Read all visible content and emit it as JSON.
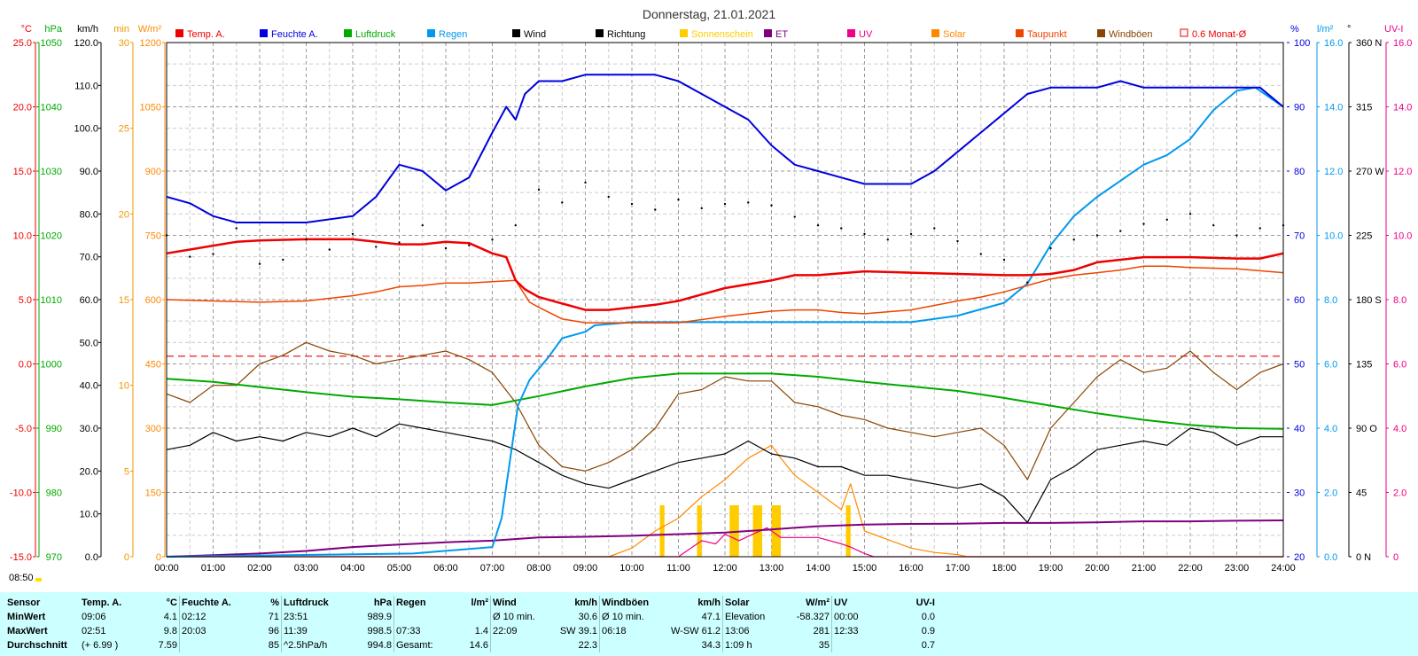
{
  "title": "Donnerstag, 21.01.2021",
  "time_label": "08:50",
  "colors": {
    "temp": "#ee0000",
    "humidity": "#0000dd",
    "pressure": "#00aa00",
    "rain": "#0099ee",
    "wind": "#000000",
    "direction": "#000000",
    "sunshine": "#ffcc00",
    "et": "#800080",
    "uv": "#ee0088",
    "solar": "#ff8800",
    "dewpoint": "#ee4400",
    "gusts": "#884400",
    "ref": "#ee0000",
    "grid": "#888888"
  },
  "legend": [
    {
      "label": "Temp. A.",
      "color": "#ee0000",
      "kind": "box"
    },
    {
      "label": "Feuchte A.",
      "color": "#0000dd",
      "kind": "box"
    },
    {
      "label": "Luftdruck",
      "color": "#00aa00",
      "kind": "box"
    },
    {
      "label": "Regen",
      "color": "#0099ee",
      "kind": "box"
    },
    {
      "label": "Wind",
      "color": "#000000",
      "kind": "box"
    },
    {
      "label": "Richtung",
      "color": "#000000",
      "kind": "box"
    },
    {
      "label": "Sonnenschein",
      "color": "#ffcc00",
      "kind": "box"
    },
    {
      "label": "ET",
      "color": "#800080",
      "kind": "box"
    },
    {
      "label": "UV",
      "color": "#ee0088",
      "kind": "box"
    },
    {
      "label": "Solar",
      "color": "#ff8800",
      "kind": "box"
    },
    {
      "label": "Taupunkt",
      "color": "#ee4400",
      "kind": "box"
    },
    {
      "label": "Windböen",
      "color": "#884400",
      "kind": "box"
    },
    {
      "label": "0.6 Monat-Ø",
      "color": "#ee0000",
      "kind": "outline"
    }
  ],
  "left_axes": [
    {
      "unit": "°C",
      "color": "#ee0000",
      "ticks": [
        "25.0",
        "20.0",
        "15.0",
        "10.0",
        "5.0",
        "0.0",
        "-5.0",
        "-10.0",
        "-15.0"
      ]
    },
    {
      "unit": "hPa",
      "color": "#00aa00",
      "ticks": [
        "1050",
        "1040",
        "1030",
        "1020",
        "1010",
        "1000",
        "990",
        "980",
        "970"
      ]
    },
    {
      "unit": "km/h",
      "color": "#000000",
      "ticks": [
        "120.0",
        "110.0",
        "100.0",
        "90.0",
        "80.0",
        "70.0",
        "60.0",
        "50.0",
        "40.0",
        "30.0",
        "20.0",
        "10.0",
        "0.0"
      ]
    },
    {
      "unit": "min",
      "color": "#ee9900",
      "ticks": [
        "30",
        "25",
        "20",
        "15",
        "10",
        "5",
        "0"
      ]
    },
    {
      "unit": "W/m²",
      "color": "#ff8800",
      "ticks": [
        "1200",
        "1050",
        "900",
        "750",
        "600",
        "450",
        "300",
        "150",
        "0"
      ]
    }
  ],
  "right_axes": [
    {
      "unit": "%",
      "color": "#0000dd",
      "ticks": [
        "100",
        "90",
        "80",
        "70",
        "60",
        "50",
        "40",
        "30",
        "20"
      ]
    },
    {
      "unit": "l/m²",
      "color": "#0099ee",
      "ticks": [
        "16.0",
        "14.0",
        "12.0",
        "10.0",
        "8.0",
        "6.0",
        "4.0",
        "2.0",
        "0.0"
      ]
    },
    {
      "unit": "°",
      "color": "#000000",
      "ticks": [
        "360 N",
        "315",
        "270 W",
        "225",
        "180 S",
        "135",
        "90 O",
        "45",
        "0 N"
      ]
    },
    {
      "unit": "UV-I",
      "color": "#ee0088",
      "ticks": [
        "16.0",
        "14.0",
        "12.0",
        "10.0",
        "8.0",
        "6.0",
        "4.0",
        "2.0",
        "0"
      ]
    }
  ],
  "x_ticks": [
    "00:00",
    "01:00",
    "02:00",
    "03:00",
    "04:00",
    "05:00",
    "06:00",
    "07:00",
    "08:00",
    "09:00",
    "10:00",
    "11:00",
    "12:00",
    "13:00",
    "14:00",
    "15:00",
    "16:00",
    "17:00",
    "18:00",
    "19:00",
    "20:00",
    "21:00",
    "22:00",
    "23:00",
    "24:00"
  ],
  "chart_data": {
    "type": "line",
    "title": "Donnerstag, 21.01.2021",
    "x_unit": "hour of day",
    "xlim": [
      0,
      24
    ],
    "reference_line": {
      "label": "0.6 Monat-Ø",
      "value": 0.6,
      "unit": "°C"
    },
    "series": [
      {
        "name": "Temp. A.",
        "unit": "°C",
        "ylim": [
          -15,
          25
        ],
        "x": [
          0,
          0.5,
          1,
          1.5,
          2,
          3,
          4,
          4.5,
          5,
          5.5,
          6,
          6.5,
          7,
          7.3,
          7.5,
          7.7,
          8,
          8.5,
          9,
          9.5,
          10,
          10.5,
          11,
          11.5,
          12,
          12.5,
          13,
          13.5,
          14,
          15,
          16,
          17,
          18,
          18.5,
          19,
          19.5,
          20,
          21,
          22,
          23,
          23.5,
          24
        ],
        "y": [
          8.6,
          8.9,
          9.2,
          9.5,
          9.6,
          9.7,
          9.7,
          9.5,
          9.3,
          9.3,
          9.5,
          9.4,
          8.6,
          8.3,
          6.5,
          5.8,
          5.2,
          4.7,
          4.2,
          4.2,
          4.4,
          4.6,
          4.9,
          5.4,
          5.9,
          6.2,
          6.5,
          6.9,
          6.9,
          7.2,
          7.1,
          7.0,
          6.9,
          6.9,
          7.0,
          7.3,
          7.9,
          8.3,
          8.3,
          8.2,
          8.2,
          8.6
        ]
      },
      {
        "name": "Feuchte A.",
        "unit": "%",
        "ylim": [
          20,
          100
        ],
        "x": [
          0,
          0.5,
          1,
          1.5,
          2,
          3,
          4,
          4.5,
          5,
          5.5,
          6,
          6.5,
          7,
          7.3,
          7.5,
          7.7,
          8,
          8.5,
          9,
          10,
          10.5,
          11,
          11.5,
          12,
          12.5,
          13,
          13.5,
          14,
          14.5,
          15,
          15.5,
          16,
          16.5,
          17,
          17.5,
          18,
          18.5,
          19,
          20,
          20.5,
          21,
          21.5,
          22,
          23,
          23.5,
          24
        ],
        "y": [
          76,
          75,
          73,
          72,
          72,
          72,
          73,
          76,
          81,
          80,
          77,
          79,
          86,
          90,
          88,
          92,
          94,
          94,
          95,
          95,
          95,
          94,
          92,
          90,
          88,
          84,
          81,
          80,
          79,
          78,
          78,
          78,
          80,
          83,
          86,
          89,
          92,
          93,
          93,
          94,
          93,
          93,
          93,
          93,
          93,
          90
        ]
      },
      {
        "name": "Luftdruck",
        "unit": "hPa",
        "ylim": [
          970,
          1050
        ],
        "x": [
          0,
          1,
          2,
          3,
          4,
          5,
          6,
          7,
          8,
          9,
          10,
          11,
          12,
          13,
          14,
          15,
          16,
          17,
          18,
          19,
          20,
          21,
          22,
          23,
          24
        ],
        "y": [
          997.7,
          997.2,
          996.4,
          995.6,
          994.9,
          994.5,
          994.0,
          993.6,
          995.0,
          996.5,
          997.8,
          998.5,
          998.5,
          998.5,
          998.0,
          997.2,
          996.5,
          995.8,
          994.7,
          993.5,
          992.3,
          991.3,
          990.5,
          990.0,
          989.9
        ]
      },
      {
        "name": "Regen",
        "unit": "l/m²",
        "ylim": [
          0,
          16
        ],
        "x": [
          0,
          5.3,
          7.0,
          7.2,
          7.55,
          7.8,
          8.2,
          8.5,
          9.0,
          9.2,
          10.0,
          16.0,
          17.0,
          18.0,
          18.5,
          19.0,
          19.5,
          20.0,
          20.5,
          21.0,
          21.5,
          22.0,
          22.5,
          23.0,
          23.4,
          24.0
        ],
        "y": [
          0,
          0.1,
          0.3,
          1.2,
          4.7,
          5.5,
          6.2,
          6.8,
          7.0,
          7.2,
          7.3,
          7.3,
          7.5,
          7.9,
          8.5,
          9.7,
          10.6,
          11.2,
          11.7,
          12.2,
          12.5,
          13.0,
          13.9,
          14.5,
          14.6,
          14.0
        ]
      },
      {
        "name": "Wind",
        "unit": "km/h",
        "ylim": [
          0,
          120
        ],
        "x": [
          0,
          0.5,
          1,
          1.5,
          2,
          2.5,
          3,
          3.5,
          4,
          4.5,
          5,
          5.5,
          6,
          6.5,
          7,
          7.5,
          8,
          8.5,
          9,
          9.5,
          10,
          10.5,
          11,
          11.5,
          12,
          12.5,
          13,
          13.5,
          14,
          14.5,
          15,
          15.5,
          16,
          16.5,
          17,
          17.5,
          18,
          18.5,
          19,
          19.5,
          20,
          20.5,
          21,
          21.5,
          22,
          22.5,
          23,
          23.5,
          24
        ],
        "y": [
          25,
          26,
          29,
          27,
          28,
          27,
          29,
          28,
          30,
          28,
          31,
          30,
          29,
          28,
          27,
          25,
          22,
          19,
          17,
          16,
          18,
          20,
          22,
          23,
          24,
          27,
          24,
          23,
          21,
          21,
          19,
          19,
          18,
          17,
          16,
          17,
          14,
          8,
          18,
          21,
          25,
          26,
          27,
          26,
          30,
          29,
          26,
          28,
          28
        ]
      },
      {
        "name": "Windböen",
        "unit": "km/h",
        "ylim": [
          0,
          120
        ],
        "x": [
          0,
          0.5,
          1,
          1.5,
          2,
          2.5,
          3,
          3.5,
          4,
          4.5,
          5,
          5.5,
          6,
          6.5,
          7,
          7.5,
          8,
          8.5,
          9,
          9.5,
          10,
          10.5,
          11,
          11.5,
          12,
          12.5,
          13,
          13.5,
          14,
          14.5,
          15,
          15.5,
          16,
          16.5,
          17,
          17.5,
          18,
          18.5,
          19,
          19.5,
          20,
          20.5,
          21,
          21.5,
          22,
          22.5,
          23,
          23.5,
          24
        ],
        "y": [
          38,
          36,
          40,
          40,
          45,
          47,
          50,
          48,
          47,
          45,
          46,
          47,
          48,
          46,
          43,
          36,
          26,
          21,
          20,
          22,
          25,
          30,
          38,
          39,
          42,
          41,
          41,
          36,
          35,
          33,
          32,
          30,
          29,
          28,
          29,
          30,
          26,
          18,
          30,
          36,
          42,
          46,
          43,
          44,
          48,
          43,
          39,
          43,
          45
        ]
      },
      {
        "name": "Solar",
        "unit": "W/m²",
        "ylim": [
          0,
          1200
        ],
        "x": [
          0,
          9.5,
          10.0,
          10.5,
          11.0,
          11.5,
          12.0,
          12.5,
          13.0,
          13.2,
          13.5,
          14.0,
          14.5,
          14.7,
          15.0,
          15.5,
          16.0,
          16.5,
          17.0,
          17.2,
          24
        ],
        "y": [
          0,
          0,
          20,
          60,
          90,
          140,
          180,
          230,
          260,
          230,
          190,
          150,
          110,
          170,
          60,
          40,
          20,
          10,
          5,
          0,
          0
        ]
      },
      {
        "name": "UV",
        "unit": "UV-I",
        "ylim": [
          0,
          16
        ],
        "x": [
          0,
          11.0,
          11.2,
          11.5,
          11.8,
          12.0,
          12.3,
          12.6,
          12.9,
          13.2,
          13.5,
          14.0,
          14.5,
          14.7,
          15.0,
          15.2,
          24
        ],
        "y": [
          0,
          0,
          0.2,
          0.5,
          0.4,
          0.7,
          0.5,
          0.7,
          0.9,
          0.6,
          0.6,
          0.6,
          0.4,
          0.3,
          0.1,
          0,
          0
        ]
      },
      {
        "name": "ET",
        "unit": "l/m²",
        "ylim": [
          0,
          16
        ],
        "x": [
          0,
          1,
          2,
          3,
          4,
          5,
          6,
          7,
          8,
          9,
          10,
          11,
          12,
          13,
          14,
          15,
          16,
          17,
          18,
          19,
          20,
          21,
          22,
          23,
          24
        ],
        "y": [
          0,
          0.05,
          0.1,
          0.18,
          0.3,
          0.38,
          0.45,
          0.5,
          0.6,
          0.62,
          0.65,
          0.7,
          0.75,
          0.85,
          0.95,
          1.0,
          1.02,
          1.03,
          1.05,
          1.05,
          1.07,
          1.1,
          1.1,
          1.12,
          1.13
        ]
      },
      {
        "name": "Taupunkt",
        "unit": "°C",
        "ylim": [
          -15,
          25
        ],
        "x": [
          0,
          1,
          2,
          3,
          4,
          4.5,
          5,
          5.5,
          6,
          6.5,
          7,
          7.5,
          7.8,
          8,
          8.5,
          9,
          9.5,
          10,
          11,
          12,
          13,
          13.5,
          14,
          14.5,
          15,
          16,
          17,
          17.5,
          18,
          18.5,
          19,
          19.5,
          20,
          20.5,
          21,
          21.5,
          22,
          23,
          24
        ],
        "y": [
          5.0,
          4.9,
          4.8,
          4.9,
          5.3,
          5.6,
          6.0,
          6.1,
          6.3,
          6.3,
          6.4,
          6.5,
          4.8,
          4.4,
          3.5,
          3.2,
          3.2,
          3.2,
          3.2,
          3.7,
          4.1,
          4.2,
          4.2,
          4.0,
          3.9,
          4.2,
          4.9,
          5.2,
          5.6,
          6.1,
          6.6,
          6.9,
          7.1,
          7.3,
          7.6,
          7.6,
          7.5,
          7.4,
          7.1
        ]
      },
      {
        "name": "Richtung",
        "unit": "°",
        "ylim": [
          0,
          360
        ],
        "x": [
          0,
          0.5,
          1,
          1.5,
          2,
          2.5,
          3,
          3.5,
          4,
          4.5,
          5,
          5.5,
          6,
          6.5,
          7,
          7.5,
          8,
          8.5,
          9,
          9.5,
          10,
          10.5,
          11,
          11.5,
          12,
          12.5,
          13,
          13.5,
          14,
          14.5,
          15,
          15.5,
          16,
          16.5,
          17,
          17.5,
          18,
          18.5,
          19,
          19.5,
          20,
          20.5,
          21,
          21.5,
          22,
          22.5,
          23,
          23.5,
          24
        ],
        "y": [
          225,
          210,
          212,
          230,
          205,
          208,
          222,
          215,
          226,
          217,
          220,
          232,
          216,
          218,
          222,
          232,
          257,
          248,
          262,
          252,
          247,
          243,
          250,
          244,
          247,
          248,
          246,
          238,
          232,
          230,
          226,
          222,
          226,
          230,
          221,
          212,
          208,
          192,
          216,
          222,
          225,
          228,
          233,
          236,
          240,
          232,
          225,
          230,
          232
        ]
      },
      {
        "name": "Sonnenschein",
        "unit": "min",
        "ylim": [
          0,
          30
        ],
        "x": [
          10.6,
          10.7,
          11.4,
          11.5,
          12.1,
          12.3,
          12.6,
          12.8,
          13.0,
          13.2,
          14.6,
          14.7
        ],
        "y": [
          3,
          3,
          3,
          3,
          3,
          3,
          3,
          3,
          3,
          3,
          3,
          3
        ]
      }
    ]
  },
  "stats": {
    "headers": [
      "Sensor",
      "Temp. A.",
      "°C",
      "Feuchte A.",
      "%",
      "Luftdruck",
      "hPa",
      "Regen",
      "l/m²",
      "Wind",
      "km/h",
      "Windböen",
      "km/h",
      "Solar",
      "W/m²",
      "UV",
      "UV-I"
    ],
    "rows": [
      {
        "label": "MinWert",
        "cells": [
          "09:06",
          "4.1",
          "02:12",
          "71",
          "23:51",
          "989.9",
          "",
          "",
          "Ø 10 min.",
          "30.6",
          "Ø 10 min.",
          "47.1",
          "Elevation",
          "-58.327",
          "00:00",
          "0.0"
        ]
      },
      {
        "label": "MaxWert",
        "cells": [
          "02:51",
          "9.8",
          "20:03",
          "96",
          "11:39",
          "998.5",
          "07:33",
          "1.4",
          "22:09",
          "SW 39.1",
          "06:18",
          "W-SW 61.2",
          "13:06",
          "281",
          "12:33",
          "0.9"
        ]
      },
      {
        "label": "Durchschnitt",
        "cells": [
          "(+ 6.99 )",
          "7.59",
          "",
          "85",
          "^2.5hPa/h",
          "994.8",
          "Gesamt:",
          "14.6",
          "",
          "22.3",
          "",
          "34.3",
          "1:09 h",
          "35",
          "",
          "0.7"
        ]
      }
    ]
  }
}
